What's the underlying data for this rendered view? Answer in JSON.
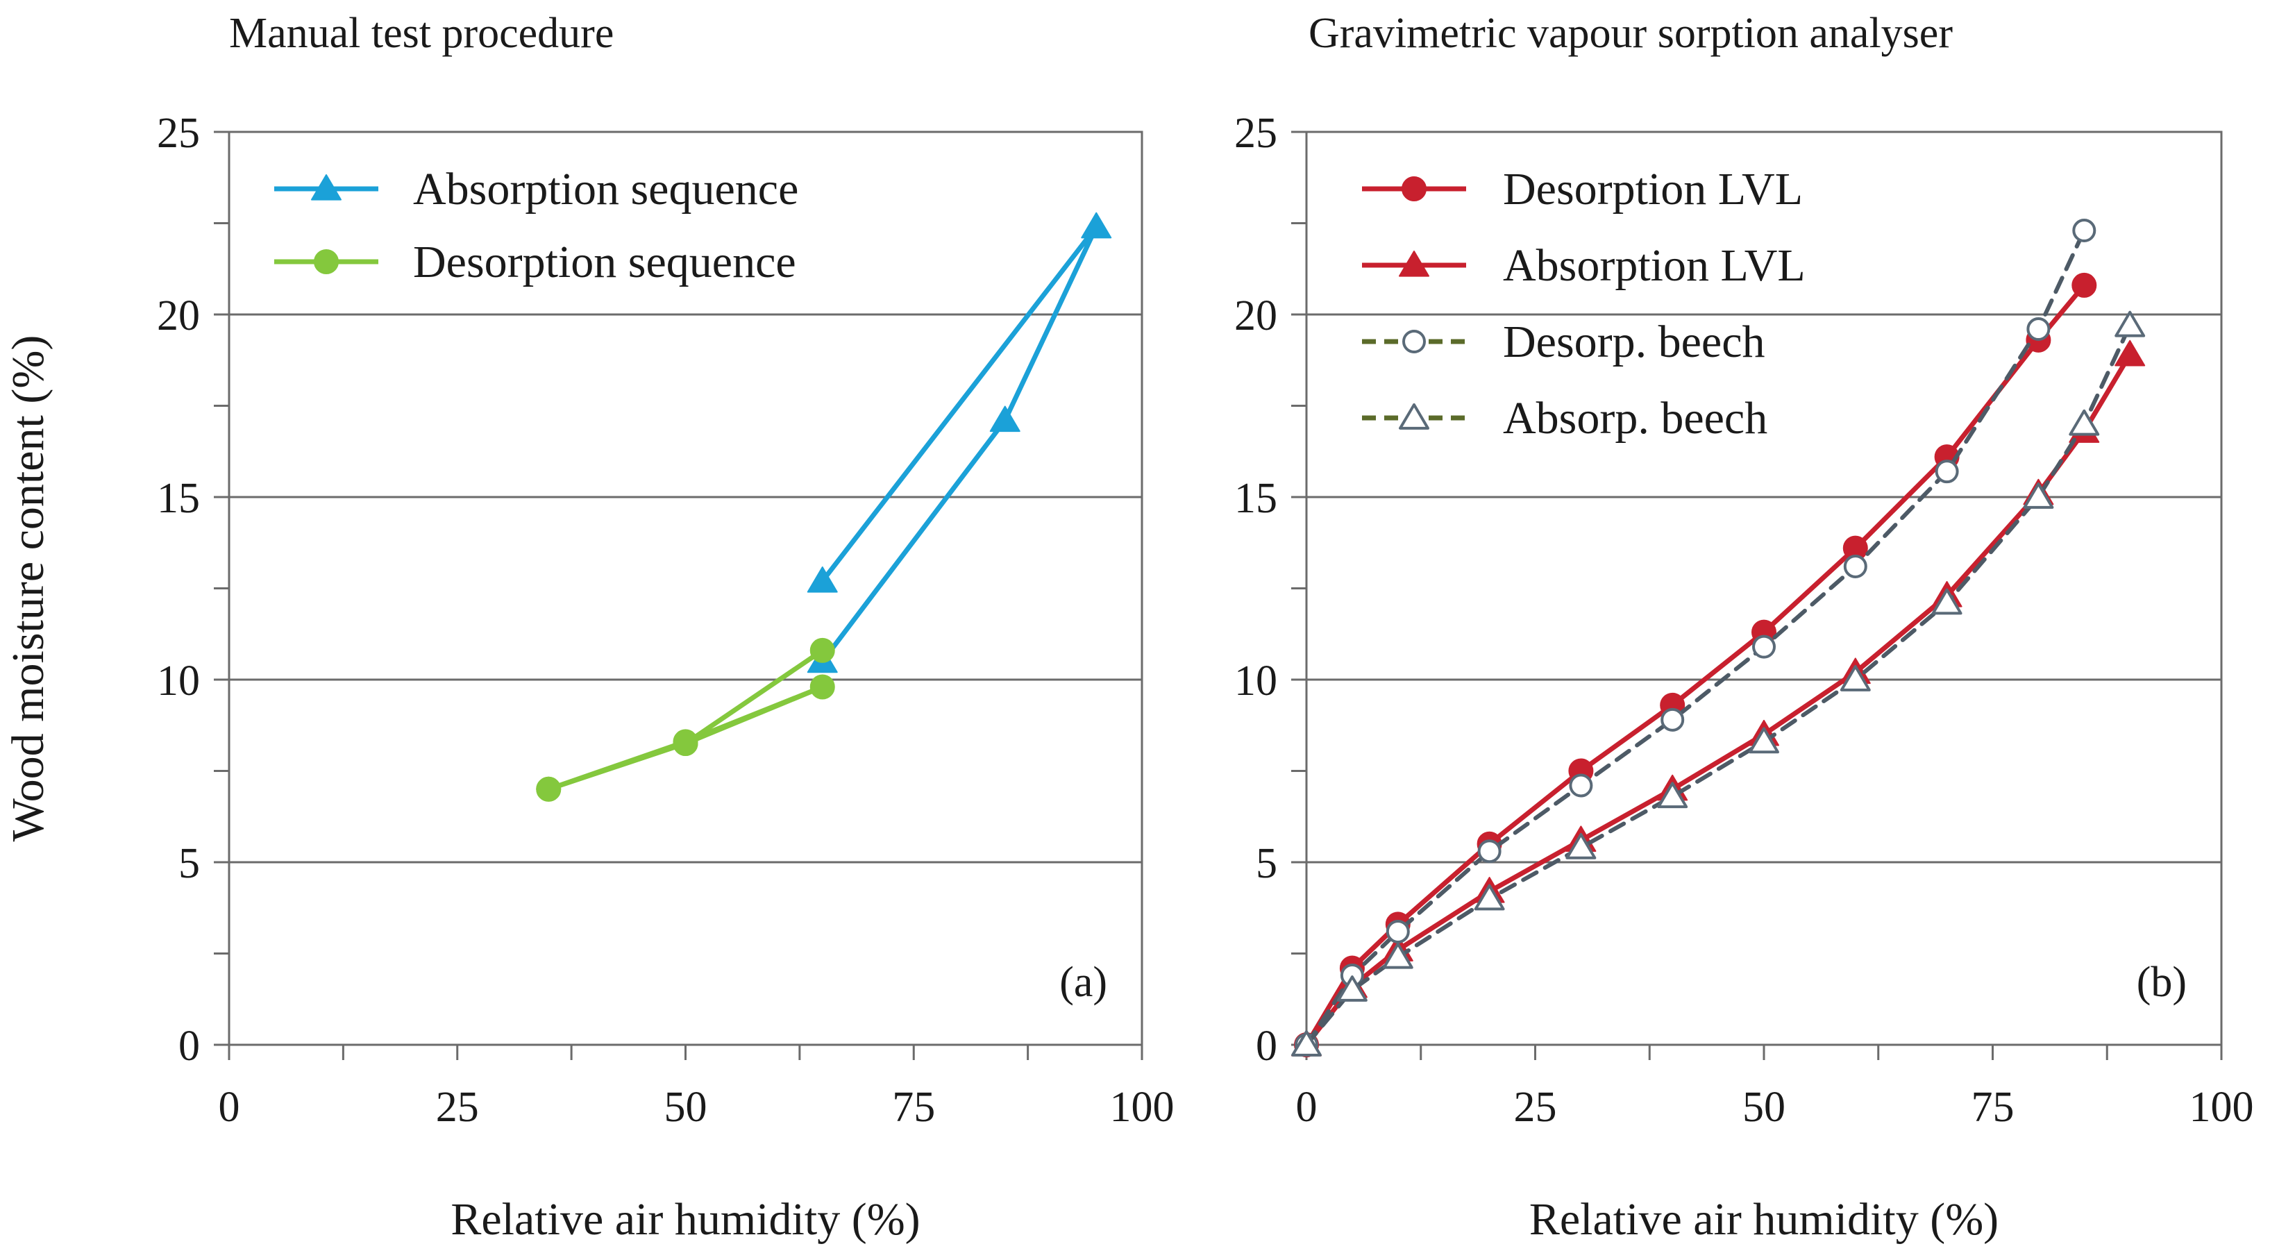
{
  "chart_data": [
    {
      "type": "line",
      "panel_tag": "(a)",
      "title": "Manual test procedure",
      "xlabel": "Relative air humidity (%)",
      "ylabel": "Wood moisture content (%)",
      "xlim": [
        0,
        100
      ],
      "ylim": [
        0,
        25
      ],
      "xticks": [
        "0",
        "25",
        "50",
        "75",
        "100"
      ],
      "yticks": [
        "0",
        "5",
        "10",
        "15",
        "20",
        "25"
      ],
      "grid": "horizontal",
      "legend_position": "top-left",
      "series": [
        {
          "name": "Absorption sequence",
          "color": "#1ba1d8",
          "marker": "triangle",
          "filled": true,
          "dashed": false,
          "x": [
            65,
            85,
            95,
            65
          ],
          "y": [
            10.5,
            17.1,
            22.4,
            12.7
          ]
        },
        {
          "name": "Desorption sequence",
          "color": "#84c83d",
          "marker": "circle",
          "filled": true,
          "dashed": false,
          "x": [
            35,
            50,
            65,
            50,
            35
          ],
          "y": [
            7.0,
            8.3,
            9.8,
            8.25,
            7.0
          ],
          "extra_x": [
            50,
            65
          ],
          "extra_y": [
            8.25,
            10.8
          ]
        }
      ]
    },
    {
      "type": "line",
      "panel_tag": "(b)",
      "title": "Gravimetric vapour sorption analyser",
      "xlabel": "Relative air humidity (%)",
      "ylabel": "",
      "xlim": [
        0,
        100
      ],
      "ylim": [
        0,
        25
      ],
      "xticks": [
        "0",
        "25",
        "50",
        "75",
        "100"
      ],
      "yticks": [
        "0",
        "5",
        "10",
        "15",
        "20",
        "25"
      ],
      "grid": "horizontal",
      "legend_position": "top-left",
      "series": [
        {
          "name": "Desorption LVL",
          "color": "#c8202e",
          "marker": "circle",
          "filled": true,
          "dashed": false,
          "x": [
            0,
            5,
            10,
            20,
            30,
            40,
            50,
            60,
            70,
            80,
            85
          ],
          "y": [
            0,
            2.1,
            3.3,
            5.5,
            7.5,
            9.3,
            11.3,
            13.6,
            16.1,
            19.3,
            20.8
          ]
        },
        {
          "name": "Absorption LVL",
          "color": "#c8202e",
          "marker": "triangle",
          "filled": true,
          "dashed": false,
          "x": [
            0,
            5,
            10,
            20,
            30,
            40,
            50,
            60,
            70,
            80,
            85,
            90
          ],
          "y": [
            0,
            1.6,
            2.6,
            4.2,
            5.6,
            7.0,
            8.5,
            10.2,
            12.3,
            15.1,
            16.8,
            18.9
          ]
        },
        {
          "name": "Desorp. beech",
          "color": "#4c5a3a",
          "marker": "circle",
          "filled": false,
          "dashed": true,
          "x": [
            0,
            5,
            10,
            20,
            30,
            40,
            50,
            60,
            70,
            80,
            85
          ],
          "y": [
            0,
            1.9,
            3.1,
            5.3,
            7.1,
            8.9,
            10.9,
            13.1,
            15.7,
            19.6,
            22.3
          ]
        },
        {
          "name": "Absorp. beech",
          "color": "#4c5a3a",
          "marker": "triangle",
          "filled": false,
          "dashed": true,
          "x": [
            0,
            5,
            10,
            20,
            30,
            40,
            50,
            60,
            70,
            80,
            85,
            90
          ],
          "y": [
            0,
            1.5,
            2.4,
            4.0,
            5.4,
            6.8,
            8.3,
            10.0,
            12.1,
            15.0,
            17.0,
            19.7
          ]
        }
      ]
    }
  ]
}
